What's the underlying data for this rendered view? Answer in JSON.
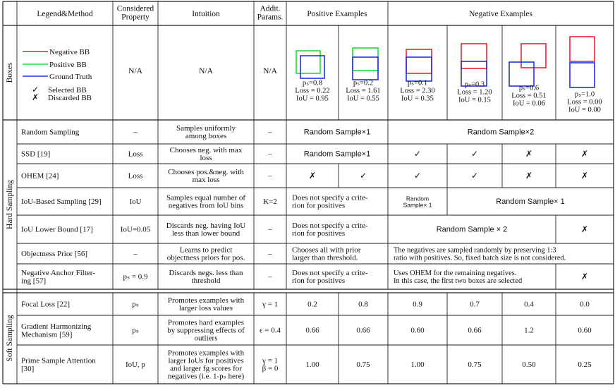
{
  "header": {
    "legend_method": "Legend&Method",
    "considered_property": [
      "Considered",
      "Property"
    ],
    "intuition": "Intuition",
    "addit_params": [
      "Addit.",
      "Params."
    ],
    "positive_examples": "Positive Examples",
    "negative_examples": "Negative Examples"
  },
  "sections": {
    "boxes": "Boxes",
    "hard_sampling": "Hard Sampling",
    "soft_sampling": "Soft Sampling"
  },
  "legend": {
    "negative_bb": "Negative BB",
    "positive_bb": "Positive BB",
    "ground_truth": "Ground Truth",
    "selected_bb": "Selected BB",
    "discarded_bb": "Discarded BB",
    "check_glyph": "✓",
    "cross_glyph": "✗",
    "colors": {
      "negative": "#e8232b",
      "positive": "#27d83b",
      "ground_truth": "#2430e0"
    }
  },
  "boxes_row": {
    "property": "N/A",
    "intuition": "N/A",
    "params": "N/A",
    "examples": [
      {
        "ps": "pₛ=0.8",
        "loss": "Loss = 0.22",
        "iou": "IoU = 0.95"
      },
      {
        "ps": "pₛ=0.2",
        "loss": "Loss = 1.61",
        "iou": "IoU = 0.55"
      },
      {
        "ps": "pₛ=0.1",
        "loss": "Loss = 2.30",
        "iou": "IoU = 0.35"
      },
      {
        "ps": "pₛ=0.3",
        "loss": "Loss = 1.20",
        "iou": "IoU = 0.15"
      },
      {
        "ps": "pₛ=0.6",
        "loss": "Loss = 0.51",
        "iou": "IoU = 0.06"
      },
      {
        "ps": "pₛ=1.0",
        "loss": "Loss = 0.00",
        "iou": "IoU = 0.00"
      }
    ]
  },
  "hard_rows": [
    {
      "method": [
        "Random Sampling"
      ],
      "property": "–",
      "intuition": [
        "Samples uniformly",
        "among boxes"
      ],
      "params": "–",
      "pos_span": "Random Sample×1",
      "neg_span": "Random Sample×2"
    },
    {
      "method": [
        "SSD [19]"
      ],
      "property": "Loss",
      "intuition": [
        "Chooses neg. with max",
        "loss"
      ],
      "params": "–",
      "pos_span": "Random Sample×1",
      "neg": [
        "✓",
        "✓",
        "✗",
        "✗"
      ]
    },
    {
      "method": [
        "OHEM [24]"
      ],
      "property": "Loss",
      "intuition": [
        "Chooses pos.&neg. with",
        "max loss"
      ],
      "params": "–",
      "pos": [
        "✗",
        "✓"
      ],
      "neg": [
        "✓",
        "✓",
        "✗",
        "✗"
      ]
    },
    {
      "method": [
        "IoU-Based Sampling [29]"
      ],
      "property": "IoU",
      "intuition": [
        "Samples equal number of",
        "negatives from IoU bins"
      ],
      "params": "K=2",
      "pos_text": [
        "Does not specify a crite-",
        "rion for positives"
      ],
      "neg_first": [
        "Random",
        "Sample× 1"
      ],
      "neg_rest": "Random Sample× 1"
    },
    {
      "method": [
        "IoU Lower Bound [17]"
      ],
      "property": "IoU=0.05",
      "intuition": [
        "Discards neg. having IoU",
        "less than lower bound"
      ],
      "params": "–",
      "pos_text": [
        "Does not specify a crite-",
        "rion for positives"
      ],
      "neg_span3": "Random Sample × 2",
      "neg_last": "✗"
    },
    {
      "method": [
        "Objectness Prior [56]"
      ],
      "property": "–",
      "intuition": [
        "Learns to predict",
        "objectness priors for pos."
      ],
      "params": "–",
      "pos_text": [
        "Chooses all with prior",
        "larger than threshold."
      ],
      "neg_text": [
        "The negatives are sampled randomly by preserving 1:3",
        "ratio with positives. So, fixed batch size is not considered."
      ]
    },
    {
      "method": [
        "Negative Anchor Filter-",
        "ing [57]"
      ],
      "property": "pₛ = 0.9",
      "intuition": [
        "Discards negs. less than",
        "threshold"
      ],
      "params": "–",
      "pos_text": [
        "Does not specify a crite-",
        "rion for positives"
      ],
      "neg_text3": [
        "Uses OHEM for the remaining negatives.",
        "In this case, the first two boxes are selected"
      ],
      "neg_last": "✗"
    }
  ],
  "soft_rows": [
    {
      "method": [
        "Focal Loss [22]"
      ],
      "property": "pₛ",
      "intuition": [
        "Promotes examples with",
        "larger loss values"
      ],
      "params": [
        "γ = 1"
      ],
      "values": [
        "0.2",
        "0.8",
        "0.9",
        "0.7",
        "0.4",
        "0.0"
      ]
    },
    {
      "method": [
        "Gradient   Harmonizing",
        "Mechanism [59]"
      ],
      "property": "pₛ",
      "intuition": [
        "Promotes hard examples",
        "by suppressing effects of",
        "outliers"
      ],
      "params": [
        "ϵ = 0.4"
      ],
      "values": [
        "0.66",
        "0.66",
        "0.60",
        "0.66",
        "1.2",
        "0.60"
      ]
    },
    {
      "method": [
        "Prime  Sample  Attention",
        "[30]"
      ],
      "property": "IoU, p",
      "intuition": [
        "Promotes examples with",
        "larger IoUs for positives",
        "and larger fg scores for",
        "negatives (i.e. 1-pₛ here)"
      ],
      "params": [
        "γ = 1",
        "β = 0"
      ],
      "values": [
        "1.00",
        "0.75",
        "1.00",
        "0.75",
        "0.50",
        "0.25"
      ]
    }
  ]
}
